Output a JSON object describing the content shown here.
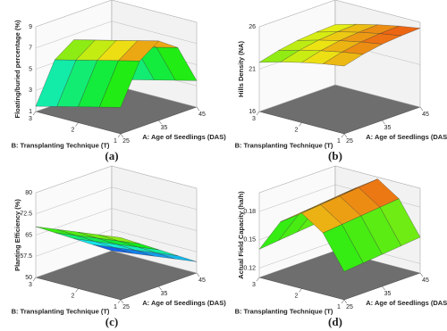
{
  "chart_data": [
    {
      "type": "surface",
      "panel_label": "(a)",
      "z_label": "Floating/buried percentage (%)",
      "x_label": "A: Age of Seedlings (DAS)",
      "y_label": "B: Transplanting Technique (T)",
      "xlim": [
        25,
        45
      ],
      "xticks": [
        25,
        35,
        45
      ],
      "ylim": [
        1,
        3
      ],
      "yticks": [
        1,
        2,
        3
      ],
      "zlim": [
        1,
        9
      ],
      "zticks": [
        1,
        3,
        5,
        7,
        9
      ],
      "x": [
        25,
        30,
        35,
        40,
        45
      ],
      "y": [
        1,
        1.5,
        2,
        2.5,
        3
      ],
      "z": [
        [
          3.5,
          7.25,
          8.5,
          7.25,
          3.5
        ],
        [
          3,
          6.75,
          8,
          6.75,
          3
        ],
        [
          2.5,
          6.25,
          7.5,
          6.25,
          2.5
        ],
        [
          2,
          5.75,
          7,
          5.75,
          2
        ],
        [
          1.5,
          5.25,
          6.5,
          5.25,
          1.5
        ]
      ]
    },
    {
      "type": "surface",
      "panel_label": "(b)",
      "z_label": "Hills Density (NA)",
      "x_label": "A: Age of Seedlings (DAS)",
      "y_label": "B: Transplanting Technique (T)",
      "xlim": [
        25,
        45
      ],
      "xticks": [
        25,
        35,
        45
      ],
      "ylim": [
        1,
        3
      ],
      "yticks": [
        1,
        2,
        3
      ],
      "zlim": [
        16,
        26
      ],
      "zticks": [
        16,
        21,
        26
      ],
      "x": [
        25,
        30,
        35,
        40,
        45
      ],
      "y": [
        1,
        1.5,
        2,
        2.5,
        3
      ],
      "z": [
        [
          24,
          24.6,
          25,
          25.2,
          25.3
        ],
        [
          23.6,
          24.2,
          24.6,
          24.8,
          24.9
        ],
        [
          23.1,
          23.7,
          24.1,
          24.3,
          24.4
        ],
        [
          22.5,
          23.1,
          23.5,
          23.7,
          23.8
        ],
        [
          21.8,
          22.4,
          22.8,
          23,
          23.1
        ]
      ]
    },
    {
      "type": "surface",
      "panel_label": "(c)",
      "z_label": "Planting Efficiency (%)",
      "x_label": "A: Age of Seedlings (DAS)",
      "y_label": "B: Transplanting Technique (T)",
      "xlim": [
        25,
        45
      ],
      "xticks": [
        25,
        35,
        45
      ],
      "ylim": [
        1,
        3
      ],
      "yticks": [
        1,
        2,
        3
      ],
      "zlim": [
        50,
        80
      ],
      "zticks": [
        50,
        57.5,
        65,
        72.5,
        80
      ],
      "x": [
        25,
        30,
        35,
        40,
        45
      ],
      "y": [
        1,
        1.5,
        2,
        2.5,
        3
      ],
      "z": [
        [
          72,
          67.5,
          63,
          58.5,
          54
        ],
        [
          71,
          66.5,
          62,
          57.5,
          53
        ],
        [
          70,
          65.5,
          61,
          56.5,
          52
        ],
        [
          69,
          64.5,
          60,
          55.5,
          51
        ],
        [
          68,
          63.5,
          59,
          54.5,
          50
        ]
      ]
    },
    {
      "type": "surface",
      "panel_label": "(d)",
      "z_label": "Actual Field Capacity (ha/h)",
      "x_label": "A: Age of Seedlings (DAS)",
      "y_label": "B: Transplanting Technique (T)",
      "xlim": [
        25,
        45
      ],
      "xticks": [
        25,
        35,
        45
      ],
      "ylim": [
        1,
        3
      ],
      "yticks": [
        1,
        2,
        3
      ],
      "zlim": [
        0.11,
        0.2
      ],
      "zticks": [
        0.12,
        0.15,
        0.18
      ],
      "x": [
        25,
        30,
        35,
        40,
        45
      ],
      "y": [
        1,
        1.5,
        2,
        2.5,
        3
      ],
      "z": [
        [
          0.14,
          0.142,
          0.144,
          0.146,
          0.148
        ],
        [
          0.175,
          0.177,
          0.179,
          0.181,
          0.183
        ],
        [
          0.19,
          0.192,
          0.194,
          0.196,
          0.198
        ],
        [
          0.175,
          0.177,
          0.179,
          0.181,
          0.183
        ],
        [
          0.14,
          0.142,
          0.144,
          0.146,
          0.148
        ]
      ]
    }
  ]
}
